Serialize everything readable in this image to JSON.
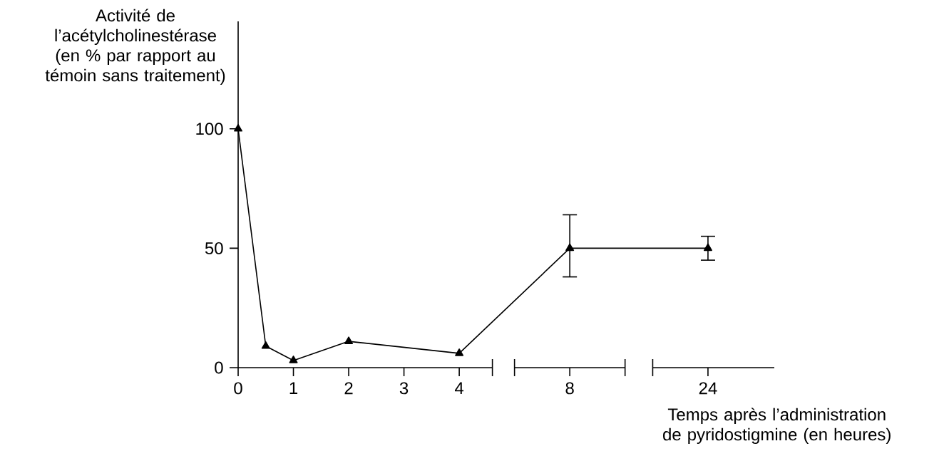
{
  "chart_data": {
    "type": "line",
    "ylabel": "Activité de l’acétylcholinestérase (en % par rapport au témoin sans traitement)",
    "xlabel": "Temps après l’administration de pyridostigmine (en heures)",
    "categories": [
      "0",
      null,
      "1",
      null,
      "2",
      null,
      "3",
      null,
      "4",
      null,
      null,
      null,
      "8",
      null,
      null,
      null,
      null,
      "24"
    ],
    "values": [
      100,
      9,
      3,
      null,
      11,
      null,
      null,
      null,
      6,
      null,
      null,
      null,
      50,
      null,
      null,
      null,
      null,
      50
    ],
    "errors": [
      null,
      null,
      null,
      null,
      null,
      null,
      null,
      null,
      null,
      null,
      null,
      null,
      [
        38,
        64
      ],
      null,
      null,
      null,
      null,
      [
        45,
        55
      ]
    ],
    "color": "#000000",
    "marker": "triangle",
    "ylim": [
      0,
      145
    ],
    "yticks": [
      0,
      50,
      100
    ]
  }
}
